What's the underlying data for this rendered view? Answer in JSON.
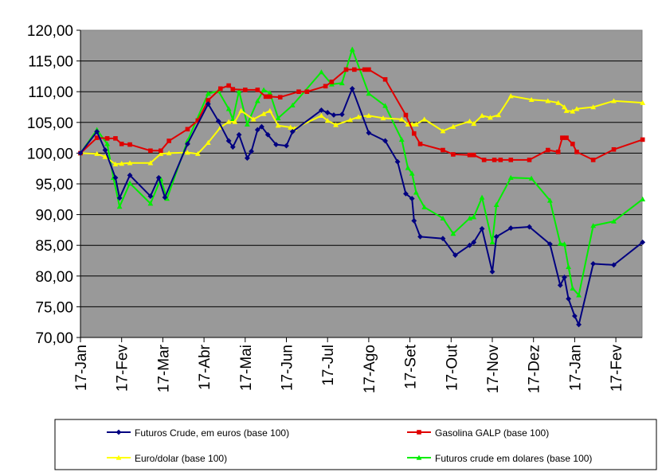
{
  "chart_data": {
    "type": "line",
    "title": "",
    "xlabel": "",
    "ylabel": "",
    "ylim": [
      70,
      120
    ],
    "yticks": [
      "70,00",
      "75,00",
      "80,00",
      "85,00",
      "90,00",
      "95,00",
      "100,00",
      "105,00",
      "110,00",
      "115,00",
      "120,00"
    ],
    "xticks": [
      "17-Jan",
      "17-Fev",
      "17-Mar",
      "17-Abr",
      "17-Mai",
      "17-Jun",
      "17-Jul",
      "17-Ago",
      "17-Set",
      "17-Out",
      "17-Nov",
      "17-Dez",
      "17-Jan",
      "17-Fev"
    ],
    "x_unit": "months since first tick (17-Jan)",
    "grid": "horizontal",
    "plot_background": "#999999",
    "legend_position": "bottom",
    "series": [
      {
        "name": "Futuros Crude,  em euros (base 100)",
        "color": "#000080",
        "marker": "diamond",
        "points": [
          [
            0,
            100
          ],
          [
            0.4,
            103.5
          ],
          [
            0.6,
            100.5
          ],
          [
            0.85,
            96
          ],
          [
            0.95,
            92.7
          ],
          [
            1.2,
            96.4
          ],
          [
            1.7,
            93
          ],
          [
            1.9,
            96
          ],
          [
            2.05,
            92.8
          ],
          [
            2.6,
            101.5
          ],
          [
            3.1,
            108
          ],
          [
            3.35,
            105.2
          ],
          [
            3.6,
            102
          ],
          [
            3.7,
            101
          ],
          [
            3.85,
            103
          ],
          [
            4.05,
            99.2
          ],
          [
            4.15,
            100.3
          ],
          [
            4.3,
            103.8
          ],
          [
            4.4,
            104.3
          ],
          [
            4.55,
            103
          ],
          [
            4.75,
            101.4
          ],
          [
            5.0,
            101.2
          ],
          [
            5.15,
            103.5
          ],
          [
            5.85,
            107
          ],
          [
            6.0,
            106.6
          ],
          [
            6.15,
            106.2
          ],
          [
            6.35,
            106.3
          ],
          [
            6.6,
            110.5
          ],
          [
            7.0,
            103.3
          ],
          [
            7.4,
            102
          ],
          [
            7.7,
            98.6
          ],
          [
            7.9,
            93.4
          ],
          [
            8.05,
            92.6
          ],
          [
            8.1,
            89
          ],
          [
            8.25,
            86.4
          ],
          [
            8.8,
            86.1
          ],
          [
            9.1,
            83.4
          ],
          [
            9.45,
            85
          ],
          [
            9.55,
            85.5
          ],
          [
            9.75,
            87.7
          ],
          [
            10.0,
            80.7
          ],
          [
            10.1,
            86.4
          ],
          [
            10.45,
            87.8
          ],
          [
            10.9,
            88
          ],
          [
            11.4,
            85.2
          ],
          [
            11.65,
            78.5
          ],
          [
            11.75,
            79.8
          ],
          [
            11.85,
            76.3
          ],
          [
            12.0,
            73.5
          ],
          [
            12.1,
            72.1
          ],
          [
            12.45,
            82
          ],
          [
            12.95,
            81.8
          ],
          [
            13.65,
            85.5
          ]
        ]
      },
      {
        "name": "Gasolina GALP (base 100)",
        "color": "#e00000",
        "marker": "square",
        "points": [
          [
            0,
            100
          ],
          [
            0.4,
            102.5
          ],
          [
            0.65,
            102.4
          ],
          [
            0.85,
            102.4
          ],
          [
            1.0,
            101.5
          ],
          [
            1.2,
            101.4
          ],
          [
            1.7,
            100.4
          ],
          [
            1.95,
            100.4
          ],
          [
            2.15,
            102
          ],
          [
            2.6,
            103.9
          ],
          [
            2.85,
            105.3
          ],
          [
            3.1,
            108.6
          ],
          [
            3.4,
            110.5
          ],
          [
            3.6,
            111
          ],
          [
            3.7,
            110.4
          ],
          [
            4.0,
            110.3
          ],
          [
            4.3,
            110.3
          ],
          [
            4.5,
            109.2
          ],
          [
            4.6,
            109.2
          ],
          [
            4.85,
            109.1
          ],
          [
            5.3,
            110
          ],
          [
            5.5,
            110
          ],
          [
            5.95,
            110.9
          ],
          [
            6.1,
            111.6
          ],
          [
            6.45,
            113.6
          ],
          [
            6.65,
            113.6
          ],
          [
            6.9,
            113.6
          ],
          [
            7.0,
            113.6
          ],
          [
            7.4,
            112
          ],
          [
            7.9,
            106.2
          ],
          [
            8.1,
            103.2
          ],
          [
            8.25,
            101.5
          ],
          [
            8.8,
            100.5
          ],
          [
            9.05,
            99.8
          ],
          [
            9.45,
            99.7
          ],
          [
            9.55,
            99.7
          ],
          [
            9.8,
            98.9
          ],
          [
            10.05,
            98.9
          ],
          [
            10.2,
            98.9
          ],
          [
            10.45,
            98.9
          ],
          [
            10.9,
            98.9
          ],
          [
            11.35,
            100.5
          ],
          [
            11.6,
            100.2
          ],
          [
            11.7,
            102.5
          ],
          [
            11.8,
            102.5
          ],
          [
            11.95,
            101.5
          ],
          [
            12.05,
            100.2
          ],
          [
            12.45,
            98.9
          ],
          [
            12.95,
            100.6
          ],
          [
            13.65,
            102.2
          ]
        ]
      },
      {
        "name": "Euro/dolar (base 100)",
        "color": "#ffff00",
        "marker": "triangle",
        "points": [
          [
            0,
            100
          ],
          [
            0.4,
            99.9
          ],
          [
            0.6,
            99.4
          ],
          [
            0.85,
            98.2
          ],
          [
            1.0,
            98.3
          ],
          [
            1.2,
            98.4
          ],
          [
            1.7,
            98.4
          ],
          [
            1.95,
            99.9
          ],
          [
            2.15,
            100
          ],
          [
            2.6,
            100.1
          ],
          [
            2.85,
            99.9
          ],
          [
            3.1,
            101.7
          ],
          [
            3.4,
            104.2
          ],
          [
            3.6,
            105.1
          ],
          [
            3.75,
            105.1
          ],
          [
            3.9,
            106.9
          ],
          [
            4.2,
            105.5
          ],
          [
            4.45,
            106.4
          ],
          [
            4.6,
            106.9
          ],
          [
            4.8,
            104.5
          ],
          [
            5.1,
            104.2
          ],
          [
            5.2,
            104
          ],
          [
            5.85,
            106.1
          ],
          [
            6.0,
            105.3
          ],
          [
            6.2,
            104.6
          ],
          [
            6.55,
            105.4
          ],
          [
            6.75,
            105.9
          ],
          [
            7.0,
            106.1
          ],
          [
            7.35,
            105.7
          ],
          [
            7.8,
            105.5
          ],
          [
            7.95,
            104.7
          ],
          [
            8.05,
            104.7
          ],
          [
            8.15,
            104.7
          ],
          [
            8.35,
            105.5
          ],
          [
            8.8,
            103.6
          ],
          [
            9.05,
            104.3
          ],
          [
            9.45,
            105.2
          ],
          [
            9.55,
            104.8
          ],
          [
            9.75,
            106.1
          ],
          [
            9.95,
            105.8
          ],
          [
            10.15,
            106.2
          ],
          [
            10.45,
            109.3
          ],
          [
            10.95,
            108.7
          ],
          [
            11.35,
            108.5
          ],
          [
            11.6,
            108.2
          ],
          [
            11.75,
            107.5
          ],
          [
            11.8,
            106.9
          ],
          [
            11.95,
            106.8
          ],
          [
            12.05,
            107.2
          ],
          [
            12.45,
            107.5
          ],
          [
            12.95,
            108.5
          ],
          [
            13.65,
            108.2
          ]
        ]
      },
      {
        "name": "Futuros crude em dolares (base 100)",
        "color": "#00ee00",
        "marker": "triangle",
        "points": [
          [
            0,
            100
          ],
          [
            0.4,
            103.8
          ],
          [
            0.65,
            101.5
          ],
          [
            0.8,
            96
          ],
          [
            0.95,
            91.3
          ],
          [
            1.2,
            95.1
          ],
          [
            1.7,
            91.8
          ],
          [
            1.95,
            95.8
          ],
          [
            2.1,
            92.6
          ],
          [
            2.6,
            102
          ],
          [
            3.1,
            109.7
          ],
          [
            3.35,
            110.1
          ],
          [
            3.6,
            107.2
          ],
          [
            3.7,
            105.5
          ],
          [
            3.85,
            110.1
          ],
          [
            4.05,
            104.7
          ],
          [
            4.3,
            108.5
          ],
          [
            4.45,
            110.3
          ],
          [
            4.6,
            109.8
          ],
          [
            4.8,
            105.7
          ],
          [
            5.15,
            107.8
          ],
          [
            5.85,
            113.2
          ],
          [
            6.1,
            111.2
          ],
          [
            6.35,
            111.4
          ],
          [
            6.6,
            116.9
          ],
          [
            7.0,
            109.7
          ],
          [
            7.4,
            107.7
          ],
          [
            7.8,
            102.2
          ],
          [
            7.95,
            97.6
          ],
          [
            8.05,
            96.7
          ],
          [
            8.15,
            93.6
          ],
          [
            8.35,
            91.2
          ],
          [
            8.8,
            89.4
          ],
          [
            9.05,
            86.9
          ],
          [
            9.45,
            89.4
          ],
          [
            9.55,
            89.6
          ],
          [
            9.75,
            92.8
          ],
          [
            10.0,
            85.5
          ],
          [
            10.1,
            91.6
          ],
          [
            10.45,
            96
          ],
          [
            10.95,
            95.9
          ],
          [
            11.4,
            92.3
          ],
          [
            11.65,
            85.3
          ],
          [
            11.75,
            85.2
          ],
          [
            11.85,
            81.5
          ],
          [
            11.95,
            78
          ],
          [
            12.1,
            76.9
          ],
          [
            12.45,
            88.2
          ],
          [
            12.95,
            88.9
          ],
          [
            13.65,
            92.5
          ]
        ]
      }
    ]
  }
}
